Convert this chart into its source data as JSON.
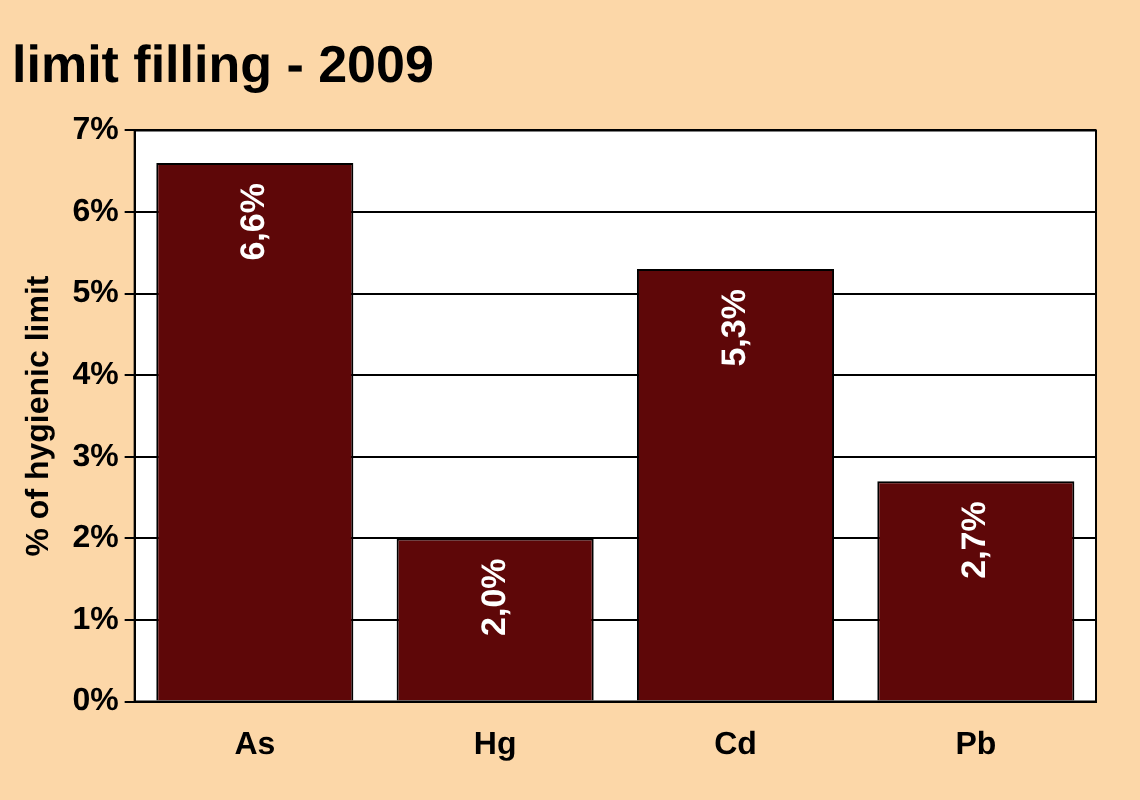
{
  "chart_data": {
    "type": "bar",
    "title": "limit filling - 2009",
    "ylabel": "% of hygienic limit",
    "categories": [
      "As",
      "Hg",
      "Cd",
      "Pb"
    ],
    "values": [
      6.6,
      2.0,
      5.3,
      2.7
    ],
    "value_labels": [
      "6,6%",
      "2,0%",
      "5,3%",
      "2,7%"
    ],
    "color": "#5e0708",
    "ylim": [
      0,
      7
    ],
    "yticks": [
      {
        "value": 0,
        "label": "0%"
      },
      {
        "value": 1,
        "label": "1%"
      },
      {
        "value": 2,
        "label": "2%"
      },
      {
        "value": 3,
        "label": "3%"
      },
      {
        "value": 4,
        "label": "4%"
      },
      {
        "value": 5,
        "label": "5%"
      },
      {
        "value": 6,
        "label": "6%"
      },
      {
        "value": 7,
        "label": "7%"
      }
    ],
    "grid": "y",
    "legend": false
  }
}
